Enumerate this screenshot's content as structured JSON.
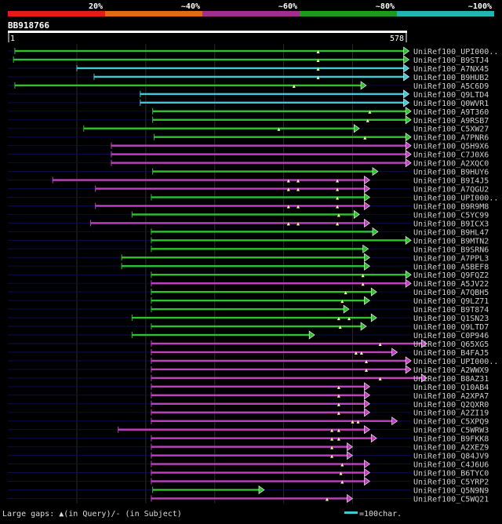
{
  "colors": {
    "background": "#000000",
    "text": "#ffffff",
    "label_text": "#cfcfcf",
    "row_line": "#0b0b4a",
    "grid": "#2b2b2b",
    "ruler": "#ffffff",
    "gap_marker": "#ffffa0",
    "bands": [
      "#e41a1c",
      "#e06b12",
      "#9c2f8f",
      "#1e9a1e",
      "#20b4b4"
    ],
    "identity": {
      "magenta": "#c040c0",
      "green": "#30c030",
      "cyan": "#40c8d8"
    }
  },
  "legend_top": {
    "labels": [
      "20%",
      "~40%",
      "~60%",
      "~80%",
      "~100%"
    ]
  },
  "query": {
    "id": "BB918766",
    "start_label": "1",
    "end_label": "578"
  },
  "footer": {
    "gap_text": "Large gaps: ▲(in Query)/- (in Subject)",
    "scale_text": "=100char."
  },
  "chart_data": {
    "type": "alignment-overview",
    "query_length": 578,
    "title": "BB918766",
    "x_range": [
      1,
      578
    ],
    "gridlines_at": [
      100,
      200,
      300,
      400,
      500
    ],
    "identity_bins": [
      "20%",
      "~40%",
      "~60%",
      "~80%",
      "~100%"
    ],
    "hits": [
      {
        "label": "UniRef100_UPI000..",
        "start": 10,
        "end": 582,
        "color": "green",
        "gaps": [
          450
        ]
      },
      {
        "label": "UniRef100_B9STJ4",
        "start": 8,
        "end": 582,
        "color": "green",
        "gaps": [
          450
        ]
      },
      {
        "label": "UniRef100_A7NX45",
        "start": 100,
        "end": 582,
        "color": "cyan",
        "gaps": [
          450
        ]
      },
      {
        "label": "UniRef100_B9HUB2",
        "start": 125,
        "end": 582,
        "color": "cyan",
        "gaps": [
          450
        ]
      },
      {
        "label": "UniRef100_A5C6D9",
        "start": 10,
        "end": 520,
        "color": "green",
        "gaps": [
          415
        ]
      },
      {
        "label": "UniRef100_Q9LTD4",
        "start": 192,
        "end": 582,
        "color": "cyan",
        "gaps": []
      },
      {
        "label": "UniRef100_Q0WVR1",
        "start": 192,
        "end": 582,
        "color": "cyan",
        "gaps": []
      },
      {
        "label": "UniRef100_A9T360",
        "start": 210,
        "end": 585,
        "color": "green",
        "gaps": [
          525
        ]
      },
      {
        "label": "UniRef100_A9RSB7",
        "start": 210,
        "end": 585,
        "color": "green",
        "gaps": [
          522
        ]
      },
      {
        "label": "UniRef100_C5XW27",
        "start": 110,
        "end": 510,
        "color": "green",
        "gaps": [
          393
        ]
      },
      {
        "label": "UniRef100_A7PNR6",
        "start": 212,
        "end": 585,
        "color": "green",
        "gaps": [
          518
        ]
      },
      {
        "label": "UniRef100_Q5H9X6",
        "start": 150,
        "end": 585,
        "color": "magenta",
        "gaps": []
      },
      {
        "label": "UniRef100_C7J0X6",
        "start": 150,
        "end": 585,
        "color": "magenta",
        "gaps": []
      },
      {
        "label": "UniRef100_A2XQC0",
        "start": 150,
        "end": 585,
        "color": "magenta",
        "gaps": []
      },
      {
        "label": "UniRef100_B9HUY6",
        "start": 210,
        "end": 537,
        "color": "green",
        "gaps": []
      },
      {
        "label": "UniRef100_B9I4J5",
        "start": 65,
        "end": 525,
        "color": "magenta",
        "gaps": [
          407,
          421,
          478
        ]
      },
      {
        "label": "UniRef100_A7QGU2",
        "start": 127,
        "end": 525,
        "color": "magenta",
        "gaps": [
          407,
          421,
          478
        ]
      },
      {
        "label": "UniRef100_UPI000..",
        "start": 208,
        "end": 525,
        "color": "green",
        "gaps": [
          478
        ]
      },
      {
        "label": "UniRef100_B9R9M8",
        "start": 127,
        "end": 525,
        "color": "magenta",
        "gaps": [
          407,
          421,
          478
        ]
      },
      {
        "label": "UniRef100_C5YC99",
        "start": 180,
        "end": 510,
        "color": "green",
        "gaps": [
          480
        ]
      },
      {
        "label": "UniRef100_B9ICX3",
        "start": 120,
        "end": 525,
        "color": "magenta",
        "gaps": [
          407,
          421,
          478
        ]
      },
      {
        "label": "UniRef100_B9HL47",
        "start": 208,
        "end": 537,
        "color": "green",
        "gaps": []
      },
      {
        "label": "UniRef100_B9MTN2",
        "start": 208,
        "end": 585,
        "color": "green",
        "gaps": []
      },
      {
        "label": "UniRef100_B9SRN6",
        "start": 208,
        "end": 523,
        "color": "green",
        "gaps": []
      },
      {
        "label": "UniRef100_A7PPL3",
        "start": 165,
        "end": 525,
        "color": "green",
        "gaps": []
      },
      {
        "label": "UniRef100_A5BEF8",
        "start": 165,
        "end": 525,
        "color": "green",
        "gaps": []
      },
      {
        "label": "UniRef100_Q9FQZ2",
        "start": 208,
        "end": 585,
        "color": "green",
        "gaps": [
          515
        ]
      },
      {
        "label": "UniRef100_A5JV22",
        "start": 208,
        "end": 585,
        "color": "magenta",
        "gaps": [
          515
        ]
      },
      {
        "label": "UniRef100_A7QBH5",
        "start": 208,
        "end": 535,
        "color": "green",
        "gaps": [
          490
        ]
      },
      {
        "label": "UniRef100_Q9LZ71",
        "start": 208,
        "end": 525,
        "color": "green",
        "gaps": [
          485
        ]
      },
      {
        "label": "UniRef100_B9T874",
        "start": 208,
        "end": 495,
        "color": "green",
        "gaps": []
      },
      {
        "label": "UniRef100_Q1SN23",
        "start": 180,
        "end": 535,
        "color": "green",
        "gaps": [
          480,
          495
        ]
      },
      {
        "label": "UniRef100_Q9LTD7",
        "start": 208,
        "end": 520,
        "color": "green",
        "gaps": [
          482
        ]
      },
      {
        "label": "UniRef100_C0P946",
        "start": 180,
        "end": 445,
        "color": "green",
        "gaps": []
      },
      {
        "label": "UniRef100_Q65XG5",
        "start": 208,
        "end": 608,
        "color": "magenta",
        "gaps": [
          540
        ]
      },
      {
        "label": "UniRef100_B4FAJ5",
        "start": 208,
        "end": 565,
        "color": "magenta",
        "gaps": [
          505,
          513
        ]
      },
      {
        "label": "UniRef100_UPI000..",
        "start": 208,
        "end": 585,
        "color": "magenta",
        "gaps": [
          520
        ]
      },
      {
        "label": "UniRef100_A2WWX9",
        "start": 208,
        "end": 585,
        "color": "magenta",
        "gaps": [
          520
        ]
      },
      {
        "label": "UniRef100_B8AZ31",
        "start": 208,
        "end": 608,
        "color": "magenta",
        "gaps": [
          540
        ]
      },
      {
        "label": "UniRef100_Q10AB4",
        "start": 208,
        "end": 525,
        "color": "magenta",
        "gaps": [
          480
        ]
      },
      {
        "label": "UniRef100_A2XPA7",
        "start": 208,
        "end": 525,
        "color": "magenta",
        "gaps": [
          480
        ]
      },
      {
        "label": "UniRef100_Q2QXR0",
        "start": 208,
        "end": 525,
        "color": "magenta",
        "gaps": [
          480
        ]
      },
      {
        "label": "UniRef100_A2ZI19",
        "start": 208,
        "end": 525,
        "color": "magenta",
        "gaps": [
          480
        ]
      },
      {
        "label": "UniRef100_C5XPQ9",
        "start": 208,
        "end": 565,
        "color": "magenta",
        "gaps": [
          500,
          508
        ]
      },
      {
        "label": "UniRef100_C5WRW3",
        "start": 160,
        "end": 525,
        "color": "magenta",
        "gaps": [
          470,
          480
        ]
      },
      {
        "label": "UniRef100_B9FKK8",
        "start": 208,
        "end": 535,
        "color": "magenta",
        "gaps": [
          470,
          480
        ]
      },
      {
        "label": "UniRef100_A2XEZ9",
        "start": 208,
        "end": 500,
        "color": "magenta",
        "gaps": [
          470
        ]
      },
      {
        "label": "UniRef100_Q84JV9",
        "start": 208,
        "end": 500,
        "color": "magenta",
        "gaps": [
          470
        ]
      },
      {
        "label": "UniRef100_C4J6U6",
        "start": 208,
        "end": 525,
        "color": "magenta",
        "gaps": [
          485
        ]
      },
      {
        "label": "UniRef100_B6TYC0",
        "start": 208,
        "end": 525,
        "color": "magenta",
        "gaps": [
          483
        ]
      },
      {
        "label": "UniRef100_C5YRP2",
        "start": 208,
        "end": 525,
        "color": "magenta",
        "gaps": [
          485
        ]
      },
      {
        "label": "UniRef100_Q5N9N9",
        "start": 210,
        "end": 372,
        "color": "green",
        "gaps": []
      },
      {
        "label": "UniRef100_C5WQ21",
        "start": 208,
        "end": 500,
        "color": "magenta",
        "gaps": [
          463
        ]
      }
    ]
  }
}
